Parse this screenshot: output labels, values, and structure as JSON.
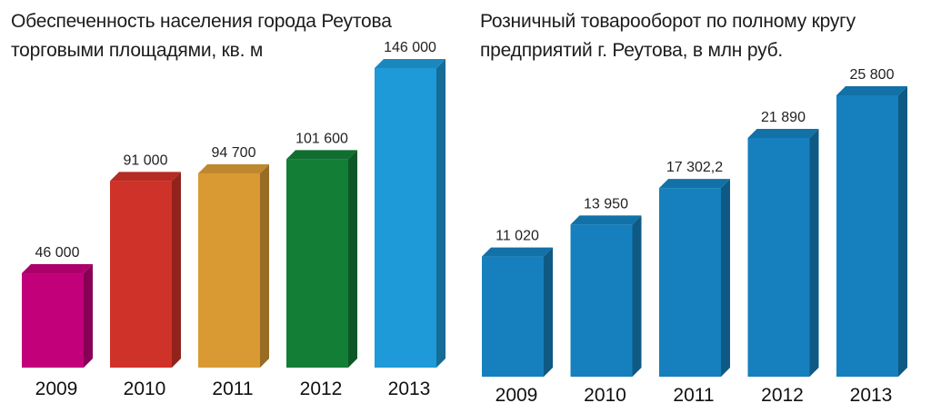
{
  "chart_data": [
    {
      "type": "bar",
      "title": "Обеспеченность населения города Реутова торговыми площадями, кв. м",
      "categories": [
        "2009",
        "2010",
        "2011",
        "2012",
        "2013"
      ],
      "values": [
        46000,
        91000,
        94700,
        101600,
        146000
      ],
      "value_labels": [
        "46 000",
        "91 000",
        "94 700",
        "101 600",
        "146 000"
      ],
      "colors": [
        "#c2007a",
        "#cf3228",
        "#d99a34",
        "#127e36",
        "#1d9ad7"
      ],
      "ylim": [
        0,
        146000
      ],
      "grid": false
    },
    {
      "type": "bar",
      "title": "Розничный товарооборот по полному кругу предприятий г. Реутова, в млн руб.",
      "categories": [
        "2009",
        "2010",
        "2011",
        "2012",
        "2013"
      ],
      "values": [
        11020,
        13950,
        17302.2,
        21890,
        25800
      ],
      "value_labels": [
        "11 020",
        "13 950",
        "17 302,2",
        "21 890",
        "25 800"
      ],
      "colors": [
        "#1580bd",
        "#1580bd",
        "#1580bd",
        "#1580bd",
        "#1580bd"
      ],
      "ylim": [
        0,
        25800
      ],
      "grid": false
    }
  ]
}
